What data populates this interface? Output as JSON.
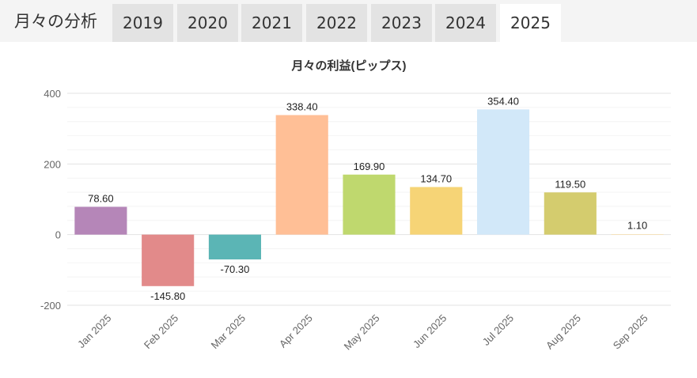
{
  "header": {
    "title": "月々の分析"
  },
  "tabs": [
    {
      "label": "2019",
      "active": false
    },
    {
      "label": "2020",
      "active": false
    },
    {
      "label": "2021",
      "active": false
    },
    {
      "label": "2022",
      "active": false
    },
    {
      "label": "2023",
      "active": false
    },
    {
      "label": "2024",
      "active": false
    },
    {
      "label": "2025",
      "active": true
    }
  ],
  "chart_data": {
    "type": "bar",
    "title": "月々の利益(ピップス)",
    "xlabel": "",
    "ylabel": "",
    "categories": [
      "Jan 2025",
      "Feb 2025",
      "Mar 2025",
      "Apr 2025",
      "May 2025",
      "Jun 2025",
      "Jul 2025",
      "Aug 2025",
      "Sep 2025"
    ],
    "values": [
      78.6,
      -145.8,
      -70.3,
      338.4,
      169.9,
      134.7,
      354.4,
      119.5,
      1.1
    ],
    "data_labels": [
      "78.60",
      "-145.80",
      "-70.30",
      "338.40",
      "169.90",
      "134.70",
      "354.40",
      "119.50",
      "1.10"
    ],
    "colors": [
      "#b586b8",
      "#e28a8a",
      "#5bb5b5",
      "#ffbf96",
      "#bfd86e",
      "#f6d476",
      "#d2e8f9",
      "#d4cc6e",
      "#fde1a1"
    ],
    "ylim": [
      -200,
      400
    ],
    "yticks": [
      400,
      200,
      0,
      -200
    ],
    "ytick_labels": [
      "400",
      "200",
      "0",
      "-200"
    ],
    "grid": true,
    "legend": "none"
  }
}
